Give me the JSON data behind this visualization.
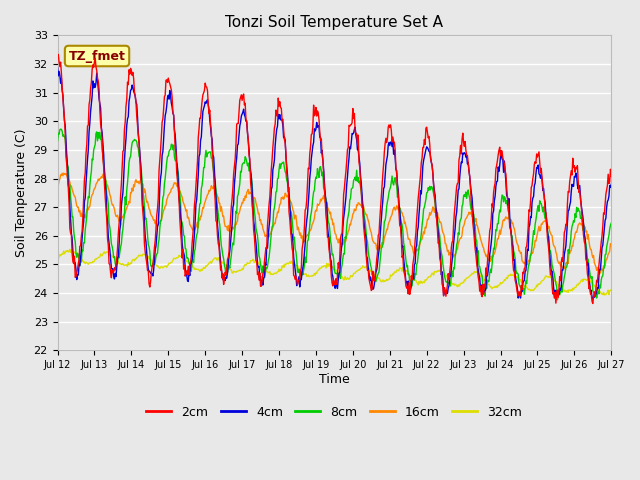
{
  "title": "Tonzi Soil Temperature Set A",
  "ylabel": "Soil Temperature (C)",
  "xlabel": "Time",
  "ylim": [
    22.0,
    33.0
  ],
  "yticks": [
    22.0,
    23.0,
    24.0,
    25.0,
    26.0,
    27.0,
    28.0,
    29.0,
    30.0,
    31.0,
    32.0,
    33.0
  ],
  "xtick_labels": [
    "Jul 12",
    "Jul 13",
    "Jul 14",
    "Jul 15",
    "Jul 16",
    "Jul 17",
    "Jul 18",
    "Jul 19",
    "Jul 20",
    "Jul 21",
    "Jul 22",
    "Jul 23",
    "Jul 24",
    "Jul 25",
    "Jul 26",
    "Jul 27"
  ],
  "legend_labels": [
    "2cm",
    "4cm",
    "8cm",
    "16cm",
    "32cm"
  ],
  "line_colors": [
    "#ff0000",
    "#0000dd",
    "#00cc00",
    "#ff8800",
    "#dddd00"
  ],
  "annotation_text": "TZ_fmet",
  "annotation_color": "#880000",
  "annotation_bg": "#ffffaa",
  "annotation_edge": "#aa8800",
  "plot_bg": "#e8e8e8",
  "fig_bg": "#e8e8e8"
}
